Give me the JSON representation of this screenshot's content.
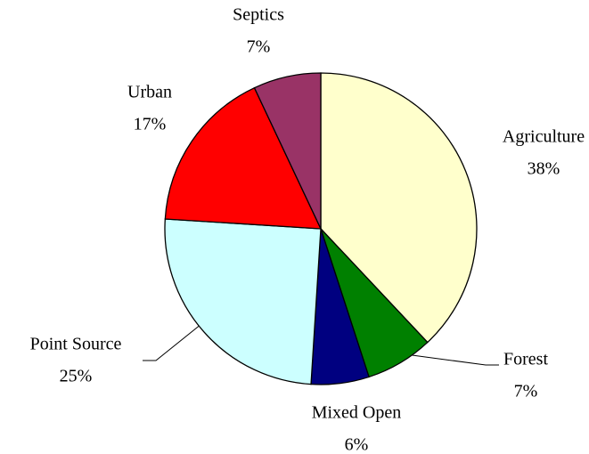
{
  "chart_data": {
    "type": "pie",
    "categories": [
      "Agriculture",
      "Forest",
      "Mixed Open",
      "Point Source",
      "Urban",
      "Septics"
    ],
    "values": [
      38,
      7,
      6,
      25,
      17,
      7
    ],
    "value_labels": [
      "38%",
      "7%",
      "6%",
      "25%",
      "17%",
      "7%"
    ],
    "colors": [
      "#ffffcc",
      "#008000",
      "#000080",
      "#ccffff",
      "#ff0000",
      "#993366"
    ]
  }
}
